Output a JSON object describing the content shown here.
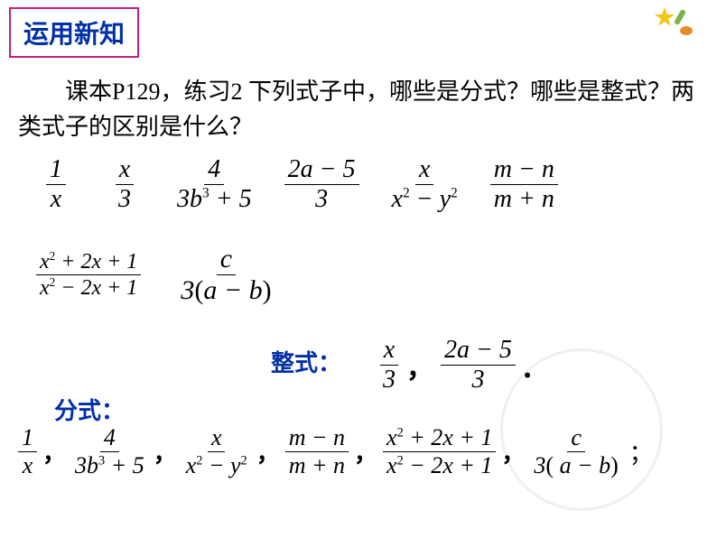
{
  "header": {
    "title": "运用新知",
    "border_color": "#c02080",
    "text_color": "#002fa7"
  },
  "icon": {
    "name": "brush-star-icon",
    "colors": {
      "star": "#f5c518",
      "brush_handle": "#7fb24a",
      "brush_head": "#e88b2d"
    }
  },
  "body": {
    "line1": "课本P129，练习2 下列式子中，哪些是分式？哪些是整式？两类式子的区别是什么？"
  },
  "expressions_row1": [
    {
      "num": "1",
      "den": "x"
    },
    {
      "num": "x",
      "den": "3"
    },
    {
      "num": "4",
      "den_html": "3<i>b</i><span class='sup'>3</span> + 5"
    },
    {
      "num_html": "2<i>a</i> − 5",
      "den": "3"
    },
    {
      "num": "x",
      "den_html": "<i>x</i><span class='sup'>2</span> − <i>y</i><span class='sup'>2</span>"
    },
    {
      "num_html": "<i>m</i> − <i>n</i>",
      "den_html": "<i>m</i> + <i>n</i>"
    }
  ],
  "expressions_row2": [
    {
      "num_html": "<i>x</i><span class='sup'>2</span> + 2<i>x</i> + 1",
      "den_html": "<i>x</i><span class='sup'>2</span> − 2<i>x</i> + 1"
    },
    {
      "num": "c",
      "den_html": "3<span class='upright'>(</span><i>a</i> − <i>b</i><span class='upright'>)</span>"
    }
  ],
  "answers": {
    "zhengshi_label": "整式：",
    "zhengshi_color": "#002fa7",
    "fenshi_label": "分式：",
    "fenshi_color": "#002fa7",
    "zhengshi": [
      {
        "num": "x",
        "den": "3"
      },
      {
        "num_html": "2<i>a</i> − 5",
        "den": "3"
      }
    ],
    "fenshi": [
      {
        "num": "1",
        "den": "x"
      },
      {
        "num": "4",
        "den_html": "3<i>b</i><span class='sup'>3</span> + 5"
      },
      {
        "num": "x",
        "den_html": "<i>x</i><span class='sup'>2</span> − <i>y</i><span class='sup'>2</span>"
      },
      {
        "num_html": "<i>m</i> − <i>n</i>",
        "den_html": "<i>m</i> + <i>n</i>"
      },
      {
        "num_html": "<i>x</i><span class='sup'>2</span> + 2<i>x</i> + 1",
        "den_html": "<i>x</i><span class='sup'>2</span> − 2<i>x</i> + 1"
      },
      {
        "num": "c",
        "den_html": "3<span class='upright'>(</span> <i>a</i> − <i>b</i><span class='upright'>)</span>"
      }
    ]
  },
  "styling": {
    "page_bg": "#ffffff",
    "text_color": "#000000",
    "body_fontsize": 26,
    "math_fontsize_row1": 28,
    "math_fontsize_row2": 24,
    "answer_fontsize": 26
  }
}
